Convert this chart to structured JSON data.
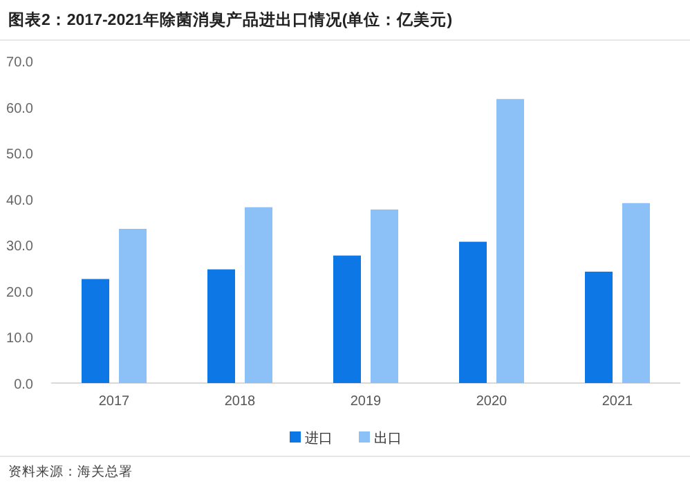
{
  "chart_data": {
    "type": "bar",
    "title": "图表2：2017-2021年除菌消臭产品进出口情况(单位：亿美元)",
    "categories": [
      "2017",
      "2018",
      "2019",
      "2020",
      "2021"
    ],
    "series": [
      {
        "name": "进口",
        "color": "#0e77e6",
        "values": [
          22.6,
          24.7,
          27.7,
          30.7,
          24.2
        ]
      },
      {
        "name": "出口",
        "color": "#8cc1f7",
        "values": [
          33.5,
          38.2,
          37.7,
          61.7,
          39.1
        ]
      }
    ],
    "ylim": [
      0,
      70
    ],
    "yticks": [
      {
        "value": 0,
        "label": "0.0"
      },
      {
        "value": 10,
        "label": "10.0"
      },
      {
        "value": 20,
        "label": "20.0"
      },
      {
        "value": 30,
        "label": "30.0"
      },
      {
        "value": 40,
        "label": "40.0"
      },
      {
        "value": 50,
        "label": "50.0"
      },
      {
        "value": 60,
        "label": "60.0"
      },
      {
        "value": 70,
        "label": "70.0"
      }
    ],
    "grid": false,
    "legend": "bottom",
    "annotations": [
      "资料来源：海关总署"
    ]
  }
}
